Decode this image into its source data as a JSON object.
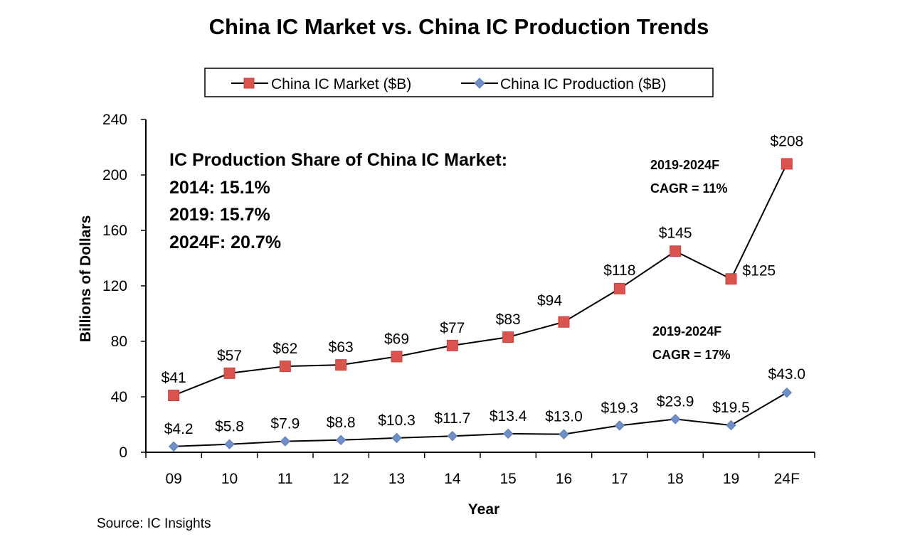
{
  "chart_data": {
    "type": "line",
    "title": "China IC Market vs. China IC Production Trends",
    "xlabel": "Year",
    "ylabel": "Billions of Dollars",
    "ylim": [
      0,
      240
    ],
    "yticks": [
      "0",
      "40",
      "80",
      "120",
      "160",
      "200",
      "240"
    ],
    "categories": [
      "09",
      "10",
      "11",
      "12",
      "13",
      "14",
      "15",
      "16",
      "17",
      "18",
      "19",
      "24F"
    ],
    "series": [
      {
        "name": "China IC Market ($B)",
        "color": "#d9534f",
        "marker": "square",
        "values": [
          41,
          57,
          62,
          63,
          69,
          77,
          83,
          94,
          118,
          145,
          125,
          208
        ],
        "labels": [
          "$41",
          "$57",
          "$62",
          "$63",
          "$69",
          "$77",
          "$83",
          "$94",
          "$118",
          "$145",
          "$125",
          "$208"
        ]
      },
      {
        "name": "China IC Production ($B)",
        "color": "#6f8fc6",
        "marker": "diamond",
        "values": [
          4.2,
          5.8,
          7.9,
          8.8,
          10.3,
          11.7,
          13.4,
          13.0,
          19.3,
          23.9,
          19.5,
          43.0
        ],
        "labels": [
          "$4.2",
          "$5.8",
          "$7.9",
          "$8.8",
          "$10.3",
          "$11.7",
          "$13.4",
          "$13.0",
          "$19.3",
          "$23.9",
          "$19.5",
          "$43.0"
        ]
      }
    ],
    "legend_position": "top-center",
    "grid": false,
    "annotations": {
      "share_title": "IC Production Share of China IC Market:",
      "share_lines": [
        "2014: 15.1%",
        "2019: 15.7%",
        "2024F: 20.7%"
      ],
      "market_cagr": [
        "2019-2024F",
        "CAGR = 11%"
      ],
      "production_cagr": [
        "2019-2024F",
        "CAGR = 17%"
      ]
    },
    "source": "Source: IC Insights"
  }
}
